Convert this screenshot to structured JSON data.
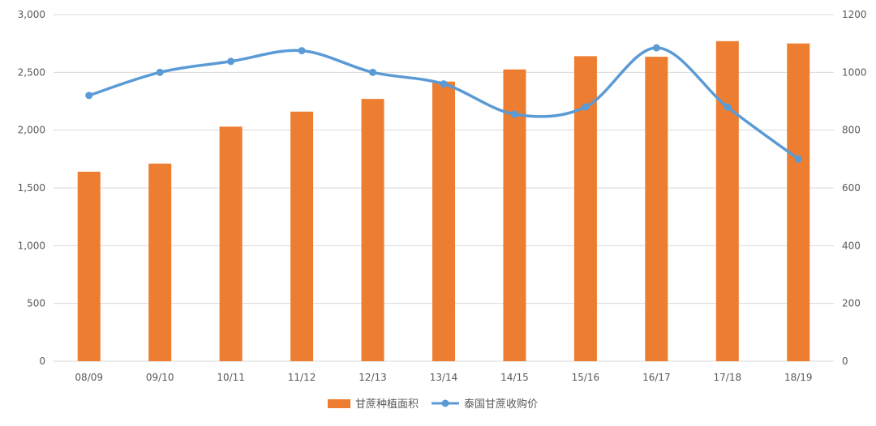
{
  "chart_data": {
    "type": "bar+line",
    "categories": [
      "08/09",
      "09/10",
      "10/11",
      "11/12",
      "12/13",
      "13/14",
      "14/15",
      "15/16",
      "16/17",
      "17/18",
      "18/19"
    ],
    "series": [
      {
        "name": "甘蔗种植面积",
        "type": "bar",
        "axis": "left",
        "color": "#ED7D31",
        "values": [
          1640,
          1710,
          2030,
          2160,
          2270,
          2420,
          2525,
          2640,
          2635,
          2770,
          2750
        ]
      },
      {
        "name": "泰国甘蔗收购价",
        "type": "line",
        "axis": "right",
        "color": "#5B9BD5",
        "smooth": true,
        "values": [
          920,
          1000,
          1038,
          1075,
          1000,
          960,
          855,
          880,
          1085,
          880,
          700
        ]
      }
    ],
    "y_left": {
      "min": 0,
      "max": 3000,
      "ticks": [
        0,
        500,
        1000,
        1500,
        2000,
        2500,
        3000
      ],
      "tick_labels": [
        "0",
        "500",
        "1,000",
        "1,500",
        "2,000",
        "2,500",
        "3,000"
      ]
    },
    "y_right": {
      "min": 0,
      "max": 1200,
      "ticks": [
        0,
        200,
        400,
        600,
        800,
        1000,
        1200
      ],
      "tick_labels": [
        "0",
        "200",
        "400",
        "600",
        "800",
        "1000",
        "1200"
      ]
    },
    "title": "",
    "xlabel": "",
    "ylabel": "",
    "grid": true,
    "legend_position": "bottom",
    "gridline_color": "#D9D9D9"
  }
}
